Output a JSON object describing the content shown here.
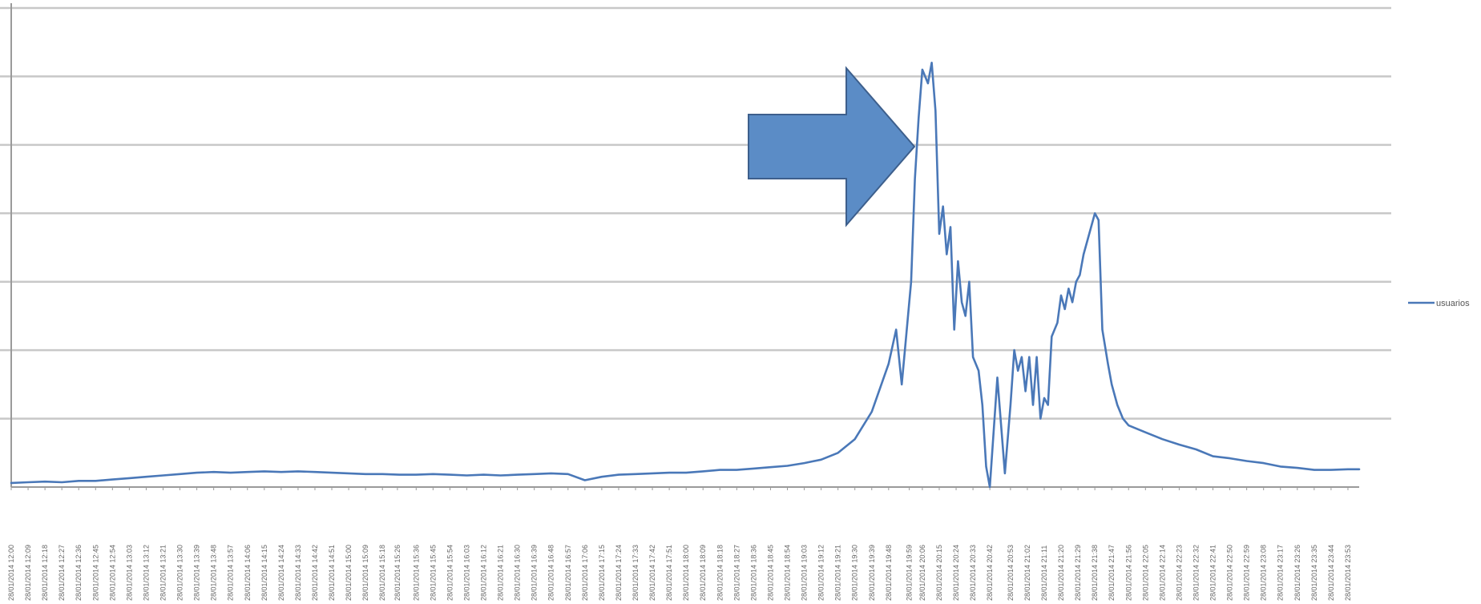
{
  "chart_data": {
    "type": "line",
    "title": "",
    "xlabel": "",
    "ylabel": "",
    "grid": true,
    "legend_position": "right",
    "ylim": [
      0,
      7
    ],
    "y_gridlines": [
      0,
      1,
      2,
      3,
      4,
      5,
      6,
      7
    ],
    "series": [
      {
        "name": "usuarios",
        "color": "#4a78b8",
        "points": [
          [
            "28/01/2014 12:00",
            0.06
          ],
          [
            "28/01/2014 12:09",
            0.07
          ],
          [
            "28/01/2014 12:18",
            0.08
          ],
          [
            "28/01/2014 12:27",
            0.07
          ],
          [
            "28/01/2014 12:36",
            0.09
          ],
          [
            "28/01/2014 12:45",
            0.09
          ],
          [
            "28/01/2014 12:54",
            0.11
          ],
          [
            "28/01/2014 13:03",
            0.13
          ],
          [
            "28/01/2014 13:12",
            0.15
          ],
          [
            "28/01/2014 13:21",
            0.17
          ],
          [
            "28/01/2014 13:30",
            0.19
          ],
          [
            "28/01/2014 13:39",
            0.21
          ],
          [
            "28/01/2014 13:48",
            0.22
          ],
          [
            "28/01/2014 13:57",
            0.21
          ],
          [
            "28/01/2014 14:06",
            0.22
          ],
          [
            "28/01/2014 14:15",
            0.23
          ],
          [
            "28/01/2014 14:24",
            0.22
          ],
          [
            "28/01/2014 14:33",
            0.23
          ],
          [
            "28/01/2014 14:42",
            0.22
          ],
          [
            "28/01/2014 14:51",
            0.21
          ],
          [
            "28/01/2014 15:00",
            0.2
          ],
          [
            "28/01/2014 15:09",
            0.19
          ],
          [
            "28/01/2014 15:18",
            0.19
          ],
          [
            "28/01/2014 15:27",
            0.18
          ],
          [
            "28/01/2014 15:36",
            0.18
          ],
          [
            "28/01/2014 15:45",
            0.19
          ],
          [
            "28/01/2014 15:54",
            0.18
          ],
          [
            "28/01/2014 16:03",
            0.17
          ],
          [
            "28/01/2014 16:12",
            0.18
          ],
          [
            "28/01/2014 16:21",
            0.17
          ],
          [
            "28/01/2014 16:30",
            0.18
          ],
          [
            "28/01/2014 16:39",
            0.19
          ],
          [
            "28/01/2014 16:48",
            0.2
          ],
          [
            "28/01/2014 16:57",
            0.19
          ],
          [
            "28/01/2014 17:06",
            0.1
          ],
          [
            "28/01/2014 17:15",
            0.15
          ],
          [
            "28/01/2014 17:24",
            0.18
          ],
          [
            "28/01/2014 17:33",
            0.19
          ],
          [
            "28/01/2014 17:42",
            0.2
          ],
          [
            "28/01/2014 17:51",
            0.21
          ],
          [
            "28/01/2014 18:00",
            0.21
          ],
          [
            "28/01/2014 18:09",
            0.23
          ],
          [
            "28/01/2014 18:18",
            0.25
          ],
          [
            "28/01/2014 18:27",
            0.25
          ],
          [
            "28/01/2014 18:36",
            0.27
          ],
          [
            "28/01/2014 18:45",
            0.29
          ],
          [
            "28/01/2014 18:54",
            0.31
          ],
          [
            "28/01/2014 19:03",
            0.35
          ],
          [
            "28/01/2014 19:12",
            0.4
          ],
          [
            "28/01/2014 19:21",
            0.5
          ],
          [
            "28/01/2014 19:30",
            0.7
          ],
          [
            "28/01/2014 19:39",
            1.1
          ],
          [
            "28/01/2014 19:48",
            1.8
          ],
          [
            "28/01/2014 19:52",
            2.3
          ],
          [
            "28/01/2014 19:55",
            1.5
          ],
          [
            "28/01/2014 19:57",
            2.1
          ],
          [
            "28/01/2014 20:00",
            3.0
          ],
          [
            "28/01/2014 20:02",
            4.5
          ],
          [
            "28/01/2014 20:04",
            5.4
          ],
          [
            "28/01/2014 20:06",
            6.1
          ],
          [
            "28/01/2014 20:09",
            5.9
          ],
          [
            "28/01/2014 20:11",
            6.2
          ],
          [
            "28/01/2014 20:13",
            5.5
          ],
          [
            "28/01/2014 20:15",
            3.7
          ],
          [
            "28/01/2014 20:17",
            4.1
          ],
          [
            "28/01/2014 20:19",
            3.4
          ],
          [
            "28/01/2014 20:21",
            3.8
          ],
          [
            "28/01/2014 20:23",
            2.3
          ],
          [
            "28/01/2014 20:25",
            3.3
          ],
          [
            "28/01/2014 20:27",
            2.7
          ],
          [
            "28/01/2014 20:29",
            2.5
          ],
          [
            "28/01/2014 20:31",
            3.0
          ],
          [
            "28/01/2014 20:33",
            1.9
          ],
          [
            "28/01/2014 20:36",
            1.7
          ],
          [
            "28/01/2014 20:38",
            1.2
          ],
          [
            "28/01/2014 20:40",
            0.3
          ],
          [
            "28/01/2014 20:42",
            0.0
          ],
          [
            "28/01/2014 20:44",
            0.8
          ],
          [
            "28/01/2014 20:46",
            1.6
          ],
          [
            "28/01/2014 20:48",
            0.9
          ],
          [
            "28/01/2014 20:50",
            0.2
          ],
          [
            "28/01/2014 20:53",
            1.2
          ],
          [
            "28/01/2014 20:55",
            2.0
          ],
          [
            "28/01/2014 20:57",
            1.7
          ],
          [
            "28/01/2014 20:59",
            1.9
          ],
          [
            "28/01/2014 21:01",
            1.4
          ],
          [
            "28/01/2014 21:03",
            1.9
          ],
          [
            "28/01/2014 21:05",
            1.2
          ],
          [
            "28/01/2014 21:07",
            1.9
          ],
          [
            "28/01/2014 21:09",
            1.0
          ],
          [
            "28/01/2014 21:11",
            1.3
          ],
          [
            "28/01/2014 21:13",
            1.2
          ],
          [
            "28/01/2014 21:15",
            2.2
          ],
          [
            "28/01/2014 21:18",
            2.4
          ],
          [
            "28/01/2014 21:20",
            2.8
          ],
          [
            "28/01/2014 21:22",
            2.6
          ],
          [
            "28/01/2014 21:24",
            2.9
          ],
          [
            "28/01/2014 21:26",
            2.7
          ],
          [
            "28/01/2014 21:28",
            3.0
          ],
          [
            "28/01/2014 21:30",
            3.1
          ],
          [
            "28/01/2014 21:32",
            3.4
          ],
          [
            "28/01/2014 21:34",
            3.6
          ],
          [
            "28/01/2014 21:36",
            3.8
          ],
          [
            "28/01/2014 21:38",
            4.0
          ],
          [
            "28/01/2014 21:40",
            3.9
          ],
          [
            "28/01/2014 21:42",
            2.3
          ],
          [
            "28/01/2014 21:45",
            1.8
          ],
          [
            "28/01/2014 21:47",
            1.5
          ],
          [
            "28/01/2014 21:50",
            1.2
          ],
          [
            "28/01/2014 21:53",
            1.0
          ],
          [
            "28/01/2014 21:56",
            0.9
          ],
          [
            "28/01/2014 22:05",
            0.8
          ],
          [
            "28/01/2014 22:14",
            0.7
          ],
          [
            "28/01/2014 22:23",
            0.62
          ],
          [
            "28/01/2014 22:32",
            0.55
          ],
          [
            "28/01/2014 22:41",
            0.45
          ],
          [
            "28/01/2014 22:50",
            0.42
          ],
          [
            "28/01/2014 22:59",
            0.38
          ],
          [
            "28/01/2014 23:08",
            0.35
          ],
          [
            "28/01/2014 23:17",
            0.3
          ],
          [
            "28/01/2014 23:26",
            0.28
          ],
          [
            "28/01/2014 23:35",
            0.25
          ],
          [
            "28/01/2014 23:44",
            0.25
          ],
          [
            "28/01/2014 23:53",
            0.26
          ],
          [
            "28/01/2014 23:59",
            0.26
          ]
        ]
      }
    ],
    "x_tick_labels": [
      "28/01/2014 12:00",
      "28/01/2014 12:09",
      "28/01/2014 12:18",
      "28/01/2014 12:27",
      "28/01/2014 12:36",
      "28/01/2014 12:45",
      "28/01/2014 12:54",
      "28/01/2014 13:03",
      "28/01/2014 13:12",
      "28/01/2014 13:21",
      "28/01/2014 13:30",
      "28/01/2014 13:39",
      "28/01/2014 13:48",
      "28/01/2014 13:57",
      "28/01/2014 14:06",
      "28/01/2014 14:15",
      "28/01/2014 14:24",
      "28/01/2014 14:33",
      "28/01/2014 14:42",
      "28/01/2014 14:51",
      "28/01/2014 15:00",
      "28/01/2014 15:09",
      "28/01/2014 15:18",
      "28/01/2014 15:26",
      "28/01/2014 15:36",
      "28/01/2014 15:45",
      "28/01/2014 15:54",
      "28/01/2014 16:03",
      "28/01/2014 16:12",
      "28/01/2014 16:21",
      "28/01/2014 16:30",
      "28/01/2014 16:39",
      "28/01/2014 16:48",
      "28/01/2014 16:57",
      "28/01/2014 17:06",
      "28/01/2014 17:15",
      "28/01/2014 17:24",
      "28/01/2014 17:33",
      "28/01/2014 17:42",
      "28/01/2014 17:51",
      "28/01/2014 18:00",
      "28/01/2014 18:09",
      "28/01/2014 18:18",
      "28/01/2014 18:27",
      "28/01/2014 18:36",
      "28/01/2014 18:45",
      "28/01/2014 18:54",
      "28/01/2014 19:03",
      "28/01/2014 19:12",
      "28/01/2014 19:21",
      "28/01/2014 19:30",
      "28/01/2014 19:39",
      "28/01/2014 19:48",
      "28/01/2014 19:59",
      "28/01/2014 20:06",
      "28/01/2014 20:15",
      "28/01/2014 20:24",
      "28/01/2014 20:33",
      "28/01/2014 20:42",
      "28/01/2014 20:53",
      "28/01/2014 21:02",
      "28/01/2014 21:11",
      "28/01/2014 21:20",
      "28/01/2014 21:29",
      "28/01/2014 21:38",
      "28/01/2014 21:47",
      "28/01/2014 21:56",
      "28/01/2014 22:05",
      "28/01/2014 22:14",
      "28/01/2014 22:23",
      "28/01/2014 22:32",
      "28/01/2014 22:41",
      "28/01/2014 22:50",
      "28/01/2014 22:59",
      "28/01/2014 23:08",
      "28/01/2014 23:17",
      "28/01/2014 23:26",
      "28/01/2014 23:35",
      "28/01/2014 23:44",
      "28/01/2014 23:53"
    ],
    "annotations": [
      {
        "type": "arrow",
        "direction": "right",
        "color": "#5b8cc6",
        "points_to": "28/01/2014 20:06"
      }
    ]
  }
}
